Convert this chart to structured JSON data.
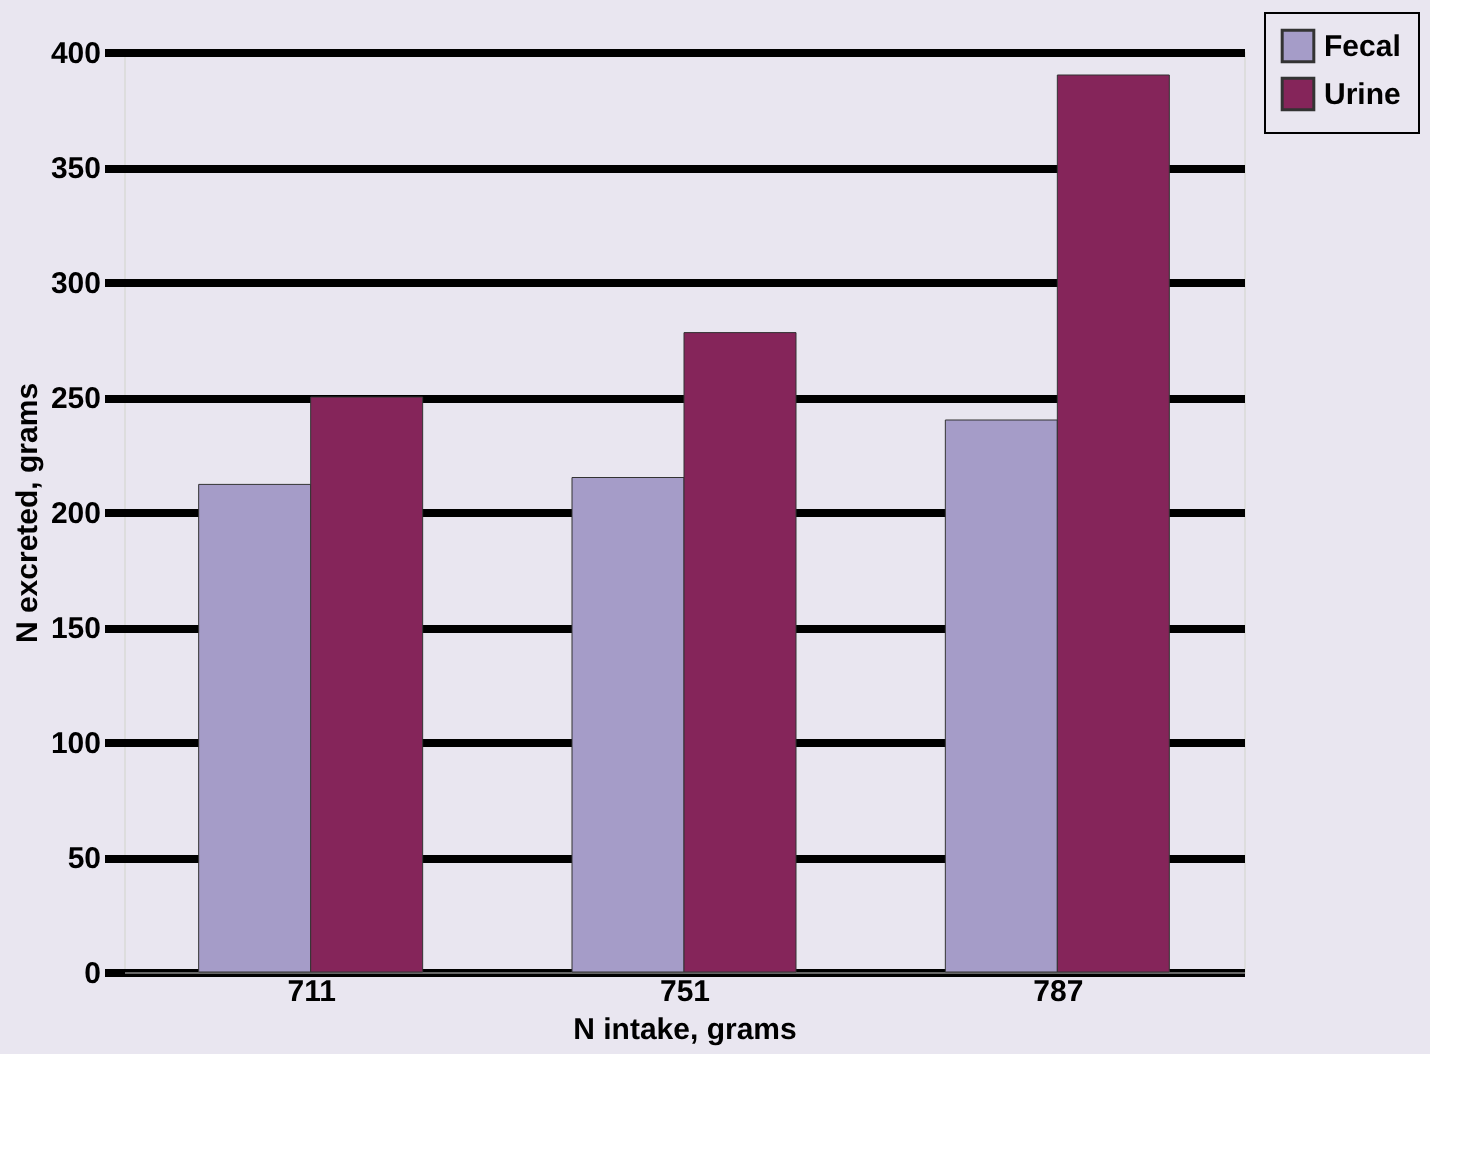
{
  "chart_data": {
    "type": "bar",
    "xlabel": "N intake, grams",
    "ylabel": "N excreted, grams",
    "categories": [
      "711",
      "751",
      "787"
    ],
    "series": [
      {
        "name": "Fecal",
        "color": "#a59cc8",
        "values": [
          212,
          215,
          240
        ]
      },
      {
        "name": "Urine",
        "color": "#85255a",
        "values": [
          250,
          278,
          390
        ]
      }
    ],
    "ylim": [
      0,
      400
    ],
    "yticks": [
      0,
      50,
      100,
      150,
      200,
      250,
      300,
      350,
      400
    ],
    "grid": "y",
    "legend": "top right"
  }
}
